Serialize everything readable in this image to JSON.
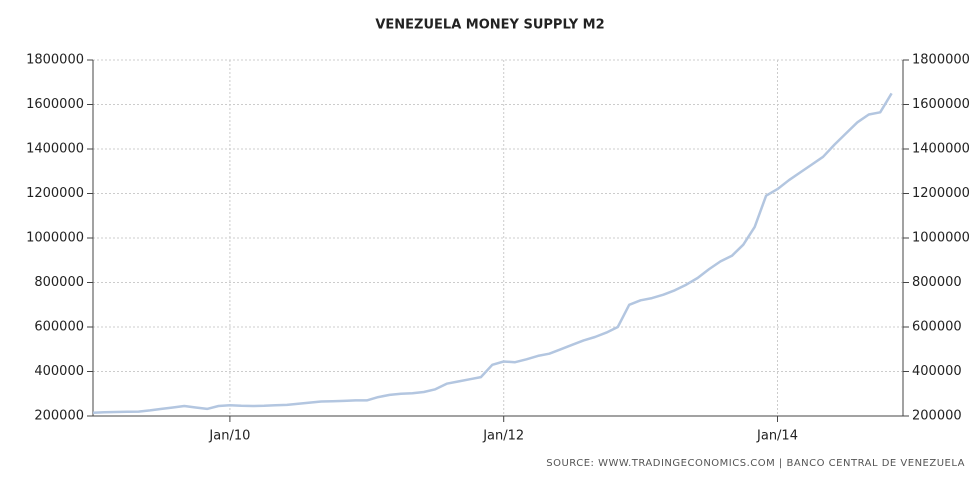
{
  "chart_data": {
    "type": "line",
    "title": "VENEZUELA MONEY SUPPLY M2",
    "source": "SOURCE: WWW.TRADINGECONOMICS.COM | BANCO CENTRAL DE VENEZUELA",
    "x": [
      "2009-01",
      "2009-02",
      "2009-03",
      "2009-04",
      "2009-05",
      "2009-06",
      "2009-07",
      "2009-08",
      "2009-09",
      "2009-10",
      "2009-11",
      "2009-12",
      "2010-01",
      "2010-02",
      "2010-03",
      "2010-04",
      "2010-05",
      "2010-06",
      "2010-07",
      "2010-08",
      "2010-09",
      "2010-10",
      "2010-11",
      "2010-12",
      "2011-01",
      "2011-02",
      "2011-03",
      "2011-04",
      "2011-05",
      "2011-06",
      "2011-07",
      "2011-08",
      "2011-09",
      "2011-10",
      "2011-11",
      "2011-12",
      "2012-01",
      "2012-02",
      "2012-03",
      "2012-04",
      "2012-05",
      "2012-06",
      "2012-07",
      "2012-08",
      "2012-09",
      "2012-10",
      "2012-11",
      "2012-12",
      "2013-01",
      "2013-02",
      "2013-03",
      "2013-04",
      "2013-05",
      "2013-06",
      "2013-07",
      "2013-08",
      "2013-09",
      "2013-10",
      "2013-11",
      "2013-12",
      "2014-01",
      "2014-02",
      "2014-03",
      "2014-04",
      "2014-05",
      "2014-06",
      "2014-07",
      "2014-08",
      "2014-09",
      "2014-10",
      "2014-11"
    ],
    "series": [
      {
        "name": "Money Supply M2",
        "color": "#b3c6e0",
        "values": [
          215000,
          217000,
          218000,
          219000,
          220000,
          225000,
          232000,
          238000,
          245000,
          238000,
          232000,
          245000,
          248000,
          246000,
          245000,
          246000,
          248000,
          250000,
          255000,
          260000,
          265000,
          266000,
          268000,
          270000,
          270000,
          285000,
          295000,
          300000,
          302000,
          308000,
          320000,
          345000,
          355000,
          365000,
          375000,
          430000,
          445000,
          442000,
          455000,
          470000,
          480000,
          500000,
          520000,
          540000,
          555000,
          575000,
          600000,
          700000,
          720000,
          730000,
          745000,
          765000,
          790000,
          820000,
          860000,
          895000,
          920000,
          970000,
          1050000,
          1190000,
          1220000,
          1260000,
          1295000,
          1330000,
          1365000,
          1420000,
          1470000,
          1520000,
          1555000,
          1565000,
          1650000
        ]
      }
    ],
    "xlim": [
      "2009-01",
      "2014-12"
    ],
    "xticks": [
      {
        "value": "2010-01",
        "label": "Jan/10"
      },
      {
        "value": "2012-01",
        "label": "Jan/12"
      },
      {
        "value": "2014-01",
        "label": "Jan/14"
      }
    ],
    "ylim": [
      200000,
      1800000
    ],
    "yticks": [
      200000,
      400000,
      600000,
      800000,
      1000000,
      1200000,
      1400000,
      1600000,
      1800000
    ],
    "grid": true
  }
}
